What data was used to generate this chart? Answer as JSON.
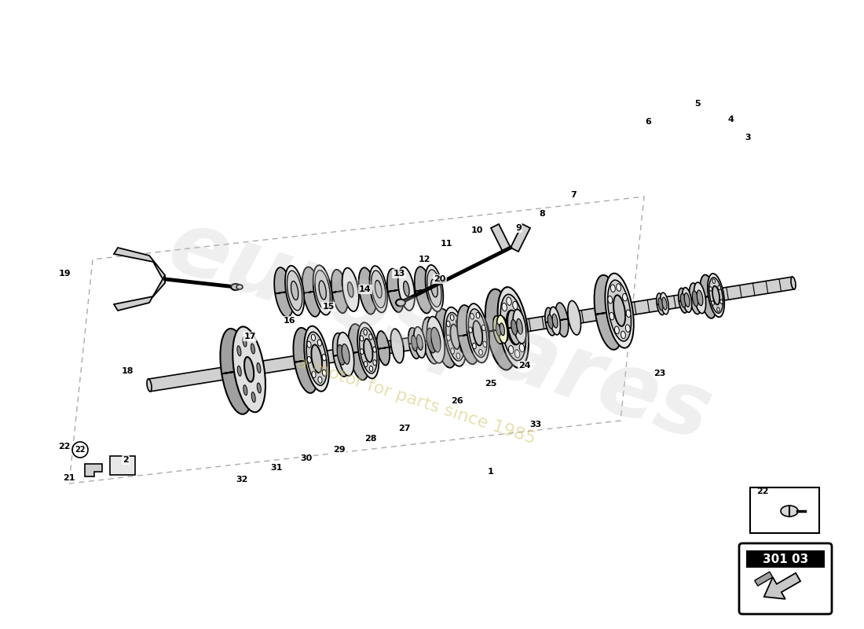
{
  "bg_color": "#ffffff",
  "watermark_text1": "eurospares",
  "watermark_text2": "a motor for parts since 1985",
  "part_number": "301 03",
  "shaft_color": "#c8c8c8",
  "component_face_color": "#e8e8e8",
  "component_side_color": "#b0b0b0",
  "bearing_ball_color": "#f0f0f0",
  "dashed_box_color": "#999999",
  "label_color": "#000000"
}
